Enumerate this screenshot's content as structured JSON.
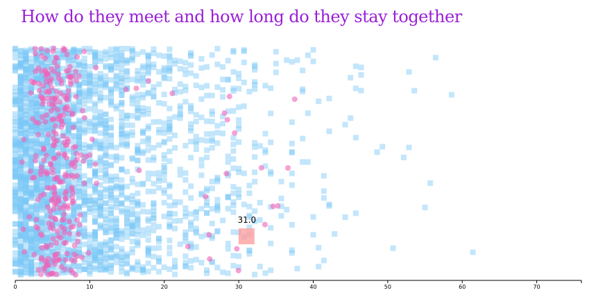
{
  "colors": {
    "title": "#9a1fd6",
    "square": "#79c8f6",
    "circle": "#f062b8",
    "highlight": "#ff9999",
    "axis": "#000000"
  },
  "chart_data": {
    "type": "scatter",
    "title": "How do they meet and how long do they stay together",
    "xlabel": "",
    "ylabel": "",
    "xlim": [
      0,
      76
    ],
    "x_ticks": [
      {
        "value": 0,
        "label": "0"
      },
      {
        "value": 10,
        "label": "10"
      },
      {
        "value": 20,
        "label": "20"
      },
      {
        "value": 30,
        "label": "30"
      },
      {
        "value": 40,
        "label": "40"
      },
      {
        "value": 50,
        "label": "50"
      },
      {
        "value": 60,
        "label": "60"
      },
      {
        "value": 70,
        "label": "70"
      }
    ],
    "grid": false,
    "legend": "none",
    "highlight": {
      "x": 31,
      "label": "31.0"
    }
  }
}
